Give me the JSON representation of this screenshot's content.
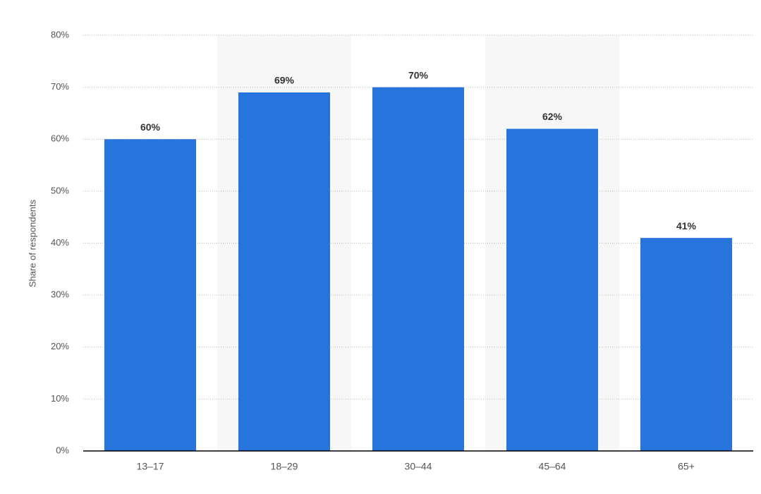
{
  "chart_data": {
    "type": "bar",
    "y_label": "Share of respondents",
    "categories": [
      "13–17",
      "18–29",
      "30–44",
      "45–64",
      "65+"
    ],
    "values": [
      60,
      69,
      70,
      62,
      41
    ],
    "value_labels": [
      "60%",
      "69%",
      "70%",
      "62%",
      "41%"
    ],
    "color": "#2874dd",
    "ylim": [
      0,
      80
    ],
    "yticks": [
      {
        "value": 0,
        "label": "0%"
      },
      {
        "value": 10,
        "label": "10%"
      },
      {
        "value": 20,
        "label": "20%"
      },
      {
        "value": 30,
        "label": "30%"
      },
      {
        "value": 40,
        "label": "40%"
      },
      {
        "value": 50,
        "label": "50%"
      },
      {
        "value": 60,
        "label": "60%"
      },
      {
        "value": 70,
        "label": "70%"
      },
      {
        "value": 80,
        "label": "80%"
      }
    ],
    "grid": true
  }
}
